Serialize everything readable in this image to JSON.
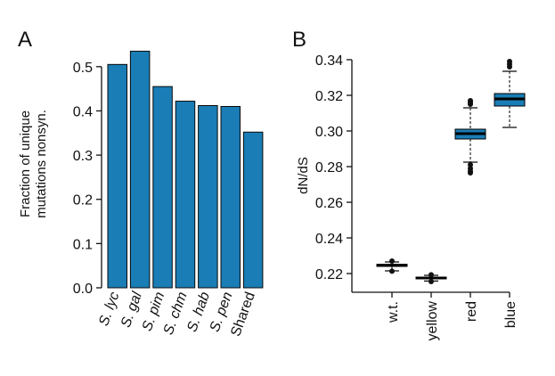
{
  "figure": {
    "panel_labels": [
      "A",
      "B"
    ]
  },
  "colors": {
    "bar": "#1a7db5",
    "box": "#1a7db5",
    "axis": "#111111",
    "median": "#000000",
    "outlier": "#111111"
  },
  "chart_data": [
    {
      "type": "bar",
      "panel": "A",
      "title": "",
      "xlabel": "",
      "ylabel": "Fraction of unique\nmutations nonsyn.",
      "categories": [
        "S. lyc",
        "S. gal",
        "S. pim",
        "S. chm",
        "S. hab",
        "S. pen",
        "Shared"
      ],
      "italic_categories": [
        true,
        true,
        true,
        true,
        true,
        true,
        false
      ],
      "values": [
        0.505,
        0.535,
        0.455,
        0.422,
        0.412,
        0.41,
        0.352
      ],
      "ylim": [
        0,
        0.55
      ],
      "yticks": [
        "0.0",
        "0.1",
        "0.2",
        "0.3",
        "0.4",
        "0.5"
      ],
      "grid": false,
      "legend": "none"
    },
    {
      "type": "box",
      "panel": "B",
      "title": "",
      "xlabel": "",
      "ylabel": "dN/dS",
      "categories": [
        "w.t.",
        "yellow",
        "red",
        "blue"
      ],
      "boxes": [
        {
          "name": "w.t.",
          "whisker_low": 0.2215,
          "q1": 0.224,
          "median": 0.2245,
          "q3": 0.2252,
          "whisker_high": 0.2265,
          "outliers": [
            0.227,
            0.2213
          ]
        },
        {
          "name": "yellow",
          "whisker_low": 0.2158,
          "q1": 0.217,
          "median": 0.2175,
          "q3": 0.218,
          "whisker_high": 0.219,
          "outliers": [
            0.2193,
            0.2155
          ]
        },
        {
          "name": "red",
          "whisker_low": 0.2825,
          "q1": 0.2955,
          "median": 0.2985,
          "q3": 0.301,
          "whisker_high": 0.313,
          "outliers": [
            0.281,
            0.279,
            0.2775,
            0.2765,
            0.315,
            0.316,
            0.317
          ]
        },
        {
          "name": "blue",
          "whisker_low": 0.302,
          "q1": 0.314,
          "median": 0.318,
          "q3": 0.321,
          "whisker_high": 0.3335,
          "outliers": [
            0.336,
            0.3375,
            0.339
          ]
        }
      ],
      "ylim": [
        0.21,
        0.345
      ],
      "yticks": [
        "0.22",
        "0.24",
        "0.26",
        "0.28",
        "0.30",
        "0.32",
        "0.34"
      ],
      "grid": false,
      "legend": "none"
    }
  ]
}
